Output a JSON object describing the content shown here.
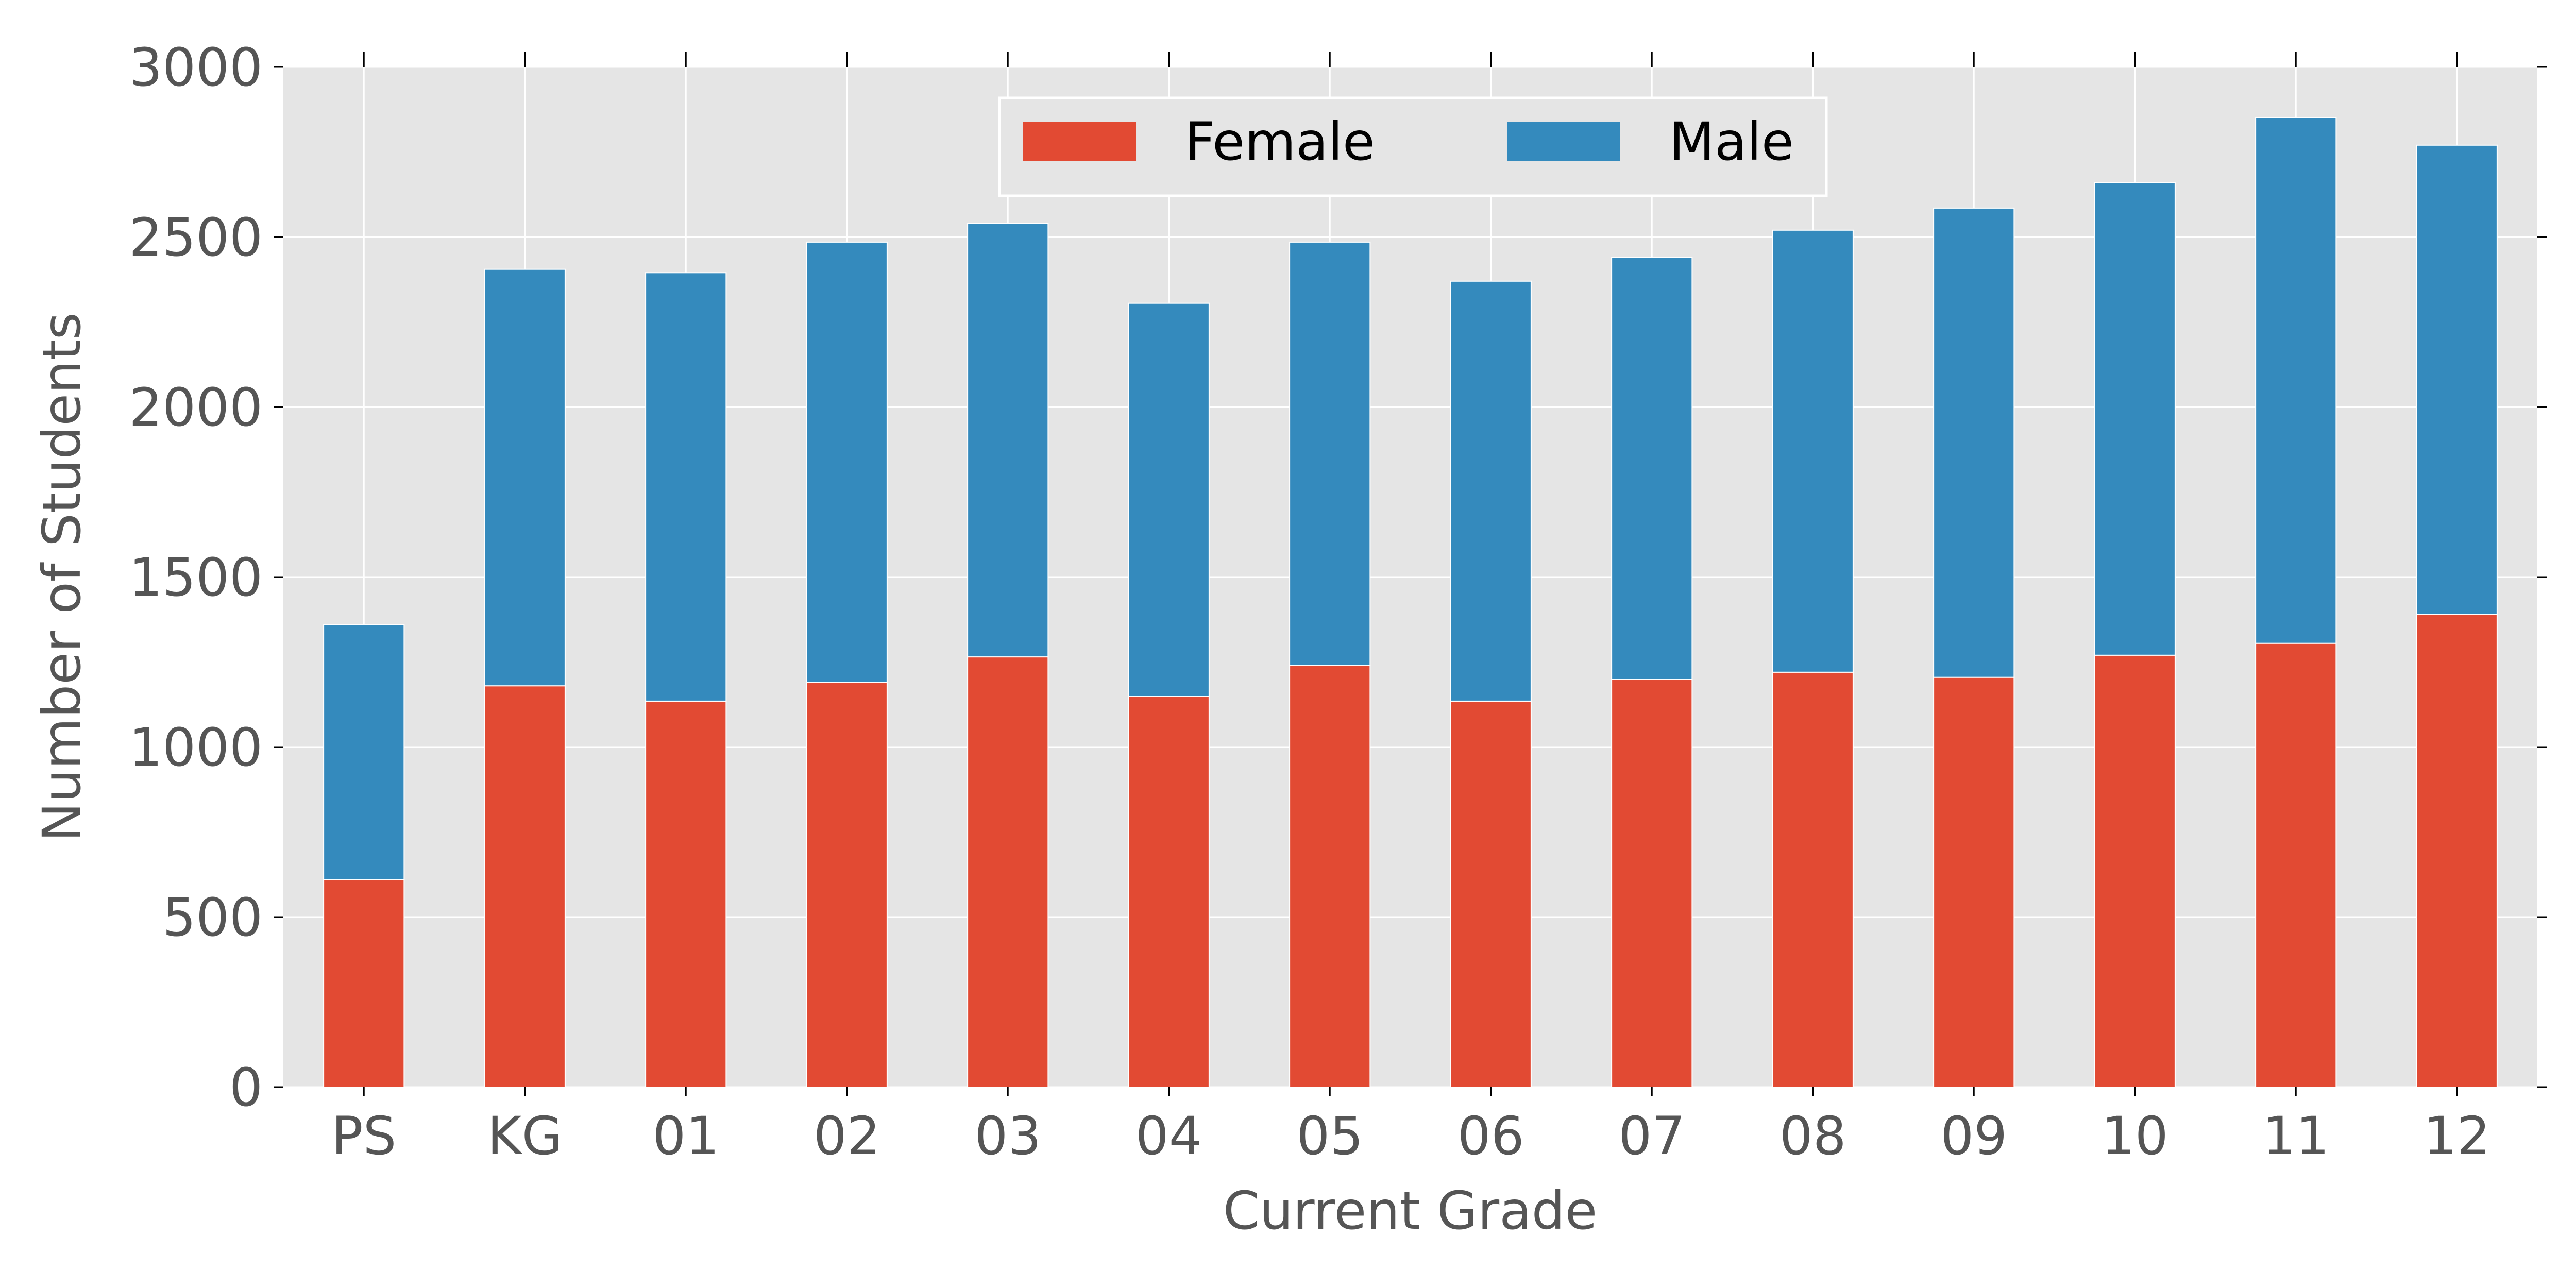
{
  "colors": {
    "female": "#e24a33",
    "male": "#348abd",
    "plot_bg": "#e5e5e5",
    "grid": "#ffffff",
    "text": "#555555"
  },
  "legend": {
    "entries": [
      "Female",
      "Male"
    ],
    "placement": "upper-center"
  },
  "chart_data": {
    "type": "bar",
    "stacked": true,
    "xlabel": "Current Grade",
    "ylabel": "Number of Students",
    "ylim": [
      0,
      3000
    ],
    "yticks": [
      0,
      500,
      1000,
      1500,
      2000,
      2500,
      3000
    ],
    "grid": true,
    "categories": [
      "PS",
      "KG",
      "01",
      "02",
      "03",
      "04",
      "05",
      "06",
      "07",
      "08",
      "09",
      "10",
      "11",
      "12"
    ],
    "series": [
      {
        "name": "Female",
        "values": [
          610,
          1180,
          1135,
          1190,
          1265,
          1150,
          1240,
          1135,
          1200,
          1220,
          1205,
          1270,
          1305,
          1390
        ]
      },
      {
        "name": "Male",
        "values": [
          750,
          1225,
          1260,
          1295,
          1275,
          1155,
          1245,
          1235,
          1240,
          1300,
          1380,
          1390,
          1545,
          1380
        ]
      }
    ]
  }
}
